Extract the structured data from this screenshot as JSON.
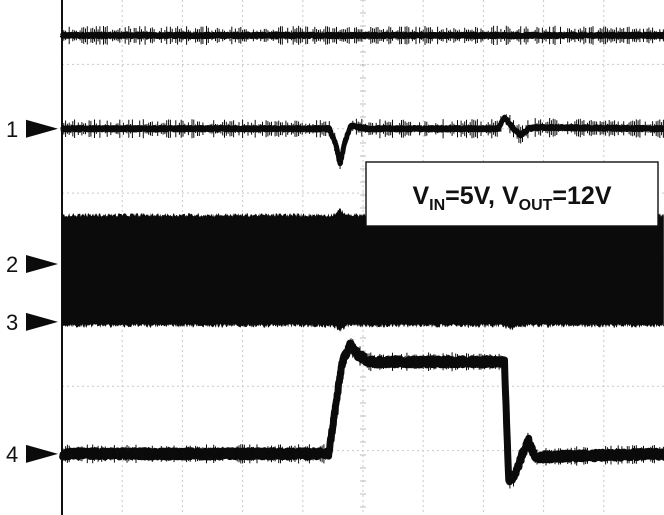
{
  "chart_data": {
    "type": "line",
    "title": "",
    "xlabel": "",
    "ylabel": "",
    "grid": true,
    "grid_divisions": {
      "x": 10,
      "y": 8
    },
    "xlim": [
      0,
      10
    ],
    "ylim": [
      0,
      8
    ],
    "annotation": {
      "v": "V",
      "in_sub": "IN",
      "mid": "=5V, ",
      "out_sub": "OUT",
      "end": "=12V"
    },
    "channel_markers": [
      {
        "label": "1",
        "level": 6.0
      },
      {
        "label": "2",
        "level": 3.9
      },
      {
        "label": "3",
        "level": 3.0
      },
      {
        "label": "4",
        "level": 0.95
      }
    ],
    "series": [
      {
        "id": "top",
        "type": "trace",
        "baseline": 7.45,
        "noise": 0.04,
        "points": []
      },
      {
        "id": "ch1",
        "type": "trace",
        "baseline": 6.0,
        "noise": 0.04,
        "points": [
          [
            0,
            6.0
          ],
          [
            4.44,
            6.0
          ],
          [
            4.55,
            5.75
          ],
          [
            4.62,
            5.45
          ],
          [
            4.7,
            5.8
          ],
          [
            4.8,
            6.05
          ],
          [
            4.95,
            6.02
          ],
          [
            5.1,
            6.0
          ],
          [
            7.25,
            6.0
          ],
          [
            7.35,
            6.18
          ],
          [
            7.5,
            6.0
          ],
          [
            7.62,
            5.9
          ],
          [
            7.75,
            6.0
          ],
          [
            7.85,
            6.02
          ],
          [
            10,
            6.0
          ]
        ]
      },
      {
        "id": "ch2-ch3",
        "type": "band",
        "bottom": 2.95,
        "top": 4.65,
        "bumps": [
          {
            "at": 4.62,
            "top": 4.73,
            "bottom": 2.88
          },
          {
            "at": 7.45,
            "top": 4.7,
            "bottom": 2.9
          }
        ]
      },
      {
        "id": "ch4",
        "type": "trace",
        "baseline": 0.95,
        "noise": 0.1,
        "points": [
          [
            0,
            0.95
          ],
          [
            4.43,
            0.95
          ],
          [
            4.65,
            2.35
          ],
          [
            4.78,
            2.65
          ],
          [
            4.9,
            2.5
          ],
          [
            5.1,
            2.38
          ],
          [
            7.35,
            2.38
          ],
          [
            7.38,
            1.6
          ],
          [
            7.42,
            0.55
          ],
          [
            7.52,
            0.6
          ],
          [
            7.65,
            0.95
          ],
          [
            7.75,
            1.15
          ],
          [
            7.85,
            0.9
          ],
          [
            10,
            0.95
          ]
        ]
      }
    ]
  }
}
